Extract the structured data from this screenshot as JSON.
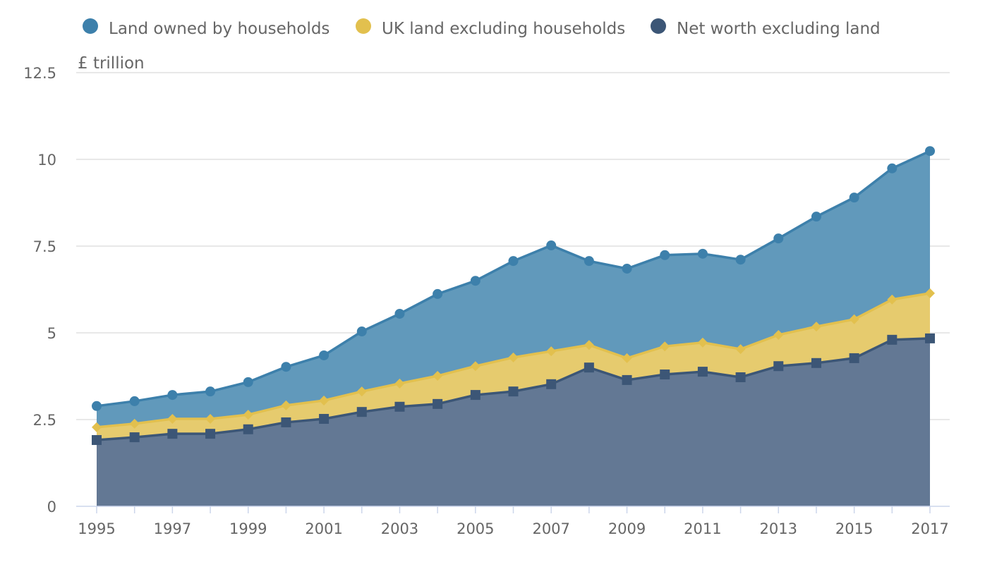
{
  "chart_data": {
    "type": "area",
    "stacking": "normal",
    "title": "",
    "xlabel": "",
    "ylabel": "£ trillion",
    "ylim": [
      0,
      12.5
    ],
    "yticks": [
      "0",
      "2.5",
      "5",
      "7.5",
      "10",
      "12.5"
    ],
    "ytick_values": [
      0,
      2.5,
      5,
      7.5,
      10,
      12.5
    ],
    "xticks": [
      "1995",
      "1997",
      "1999",
      "2001",
      "2003",
      "2005",
      "2007",
      "2009",
      "2011",
      "2013",
      "2015",
      "2017"
    ],
    "grid": true,
    "legend_position": "top",
    "x": [
      1995,
      1996,
      1997,
      1998,
      1999,
      2000,
      2001,
      2002,
      2003,
      2004,
      2005,
      2006,
      2007,
      2008,
      2009,
      2010,
      2011,
      2012,
      2013,
      2014,
      2015,
      2016,
      2017
    ],
    "series": [
      {
        "name": "Net worth excluding land",
        "marker": "square",
        "color": "#3c5676",
        "fill": "#637894",
        "values": [
          1.91,
          1.99,
          2.09,
          2.09,
          2.22,
          2.42,
          2.52,
          2.72,
          2.87,
          2.95,
          3.21,
          3.31,
          3.52,
          4.0,
          3.64,
          3.8,
          3.88,
          3.72,
          4.04,
          4.13,
          4.27,
          4.8,
          4.84
        ]
      },
      {
        "name": "UK land excluding households",
        "marker": "diamond",
        "color": "#e2c04e",
        "fill": "#e6cb6e",
        "values": [
          0.37,
          0.39,
          0.43,
          0.43,
          0.42,
          0.49,
          0.53,
          0.59,
          0.67,
          0.81,
          0.83,
          0.98,
          0.95,
          0.65,
          0.63,
          0.81,
          0.84,
          0.81,
          0.9,
          1.05,
          1.12,
          1.16,
          1.3
        ]
      },
      {
        "name": "Land owned by households",
        "marker": "circle",
        "color": "#3d80ab",
        "fill": "#6199bb",
        "values": [
          0.61,
          0.65,
          0.69,
          0.79,
          0.94,
          1.11,
          1.3,
          1.73,
          2.01,
          2.36,
          2.46,
          2.78,
          3.05,
          2.42,
          2.58,
          2.63,
          2.56,
          2.58,
          2.78,
          3.17,
          3.51,
          3.78,
          4.1
        ]
      }
    ],
    "legend_order": [
      2,
      1,
      0
    ]
  }
}
